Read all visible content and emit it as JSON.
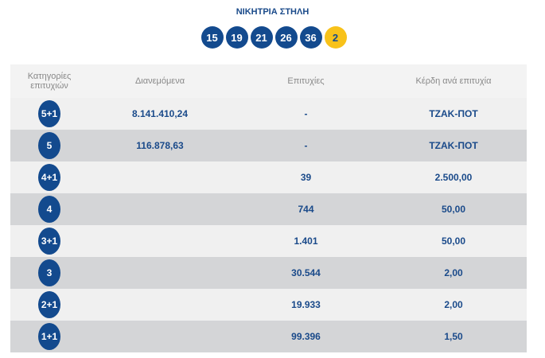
{
  "title": "ΝΙΚΗΤΡΙΑ ΣΤΗΛΗ",
  "winning_numbers": [
    "15",
    "19",
    "21",
    "26",
    "36"
  ],
  "bonus_number": "2",
  "colors": {
    "primary": "#134a8e",
    "bonus": "#f8c21a"
  },
  "table": {
    "headers": [
      "Κατηγορίες επιτυχιών",
      "Διανεμόμενα",
      "Επιτυχίες",
      "Κέρδη ανά επιτυχία"
    ],
    "rows": [
      {
        "category": "5+1",
        "distributed": "8.141.410,24",
        "wins": "-",
        "prize": "ΤΖΑΚ-ΠΟΤ"
      },
      {
        "category": "5",
        "distributed": "116.878,63",
        "wins": "-",
        "prize": "ΤΖΑΚ-ΠΟΤ"
      },
      {
        "category": "4+1",
        "distributed": "",
        "wins": "39",
        "prize": "2.500,00"
      },
      {
        "category": "4",
        "distributed": "",
        "wins": "744",
        "prize": "50,00"
      },
      {
        "category": "3+1",
        "distributed": "",
        "wins": "1.401",
        "prize": "50,00"
      },
      {
        "category": "3",
        "distributed": "",
        "wins": "30.544",
        "prize": "2,00"
      },
      {
        "category": "2+1",
        "distributed": "",
        "wins": "19.933",
        "prize": "2,00"
      },
      {
        "category": "1+1",
        "distributed": "",
        "wins": "99.396",
        "prize": "1,50"
      }
    ]
  }
}
